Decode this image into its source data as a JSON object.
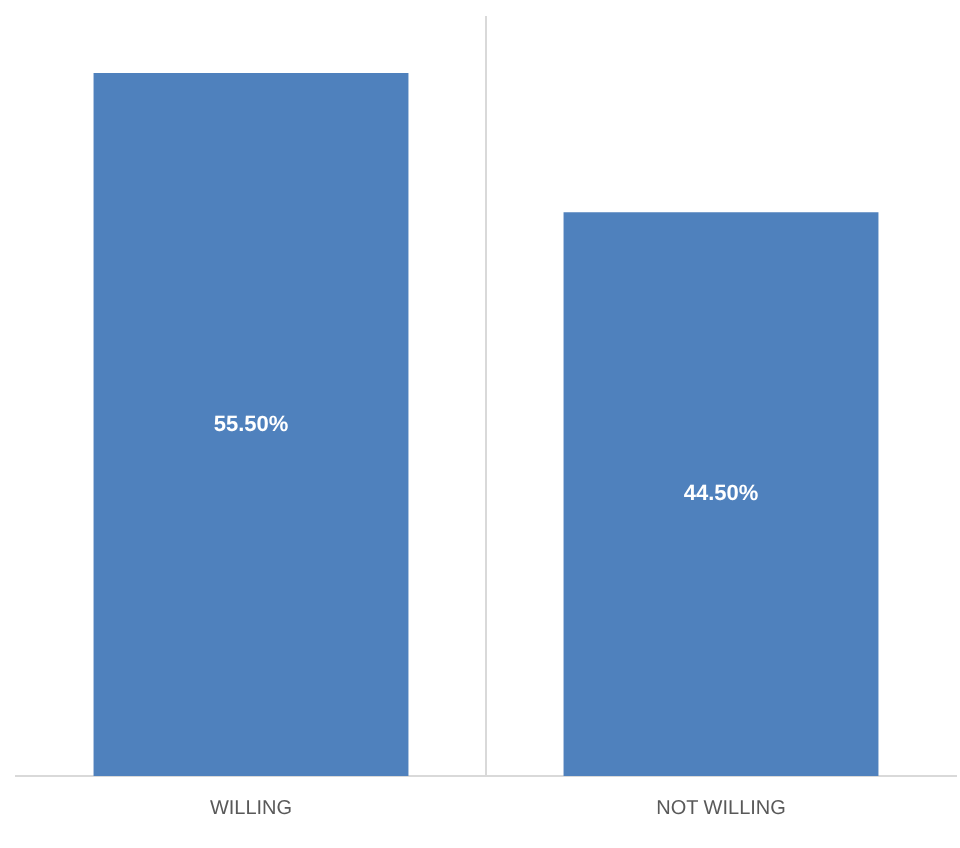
{
  "chart_data": {
    "type": "bar",
    "categories": [
      "WILLING",
      "NOT WILLING"
    ],
    "values": [
      55.5,
      44.5
    ],
    "value_labels": [
      "55.50%",
      "44.50%"
    ],
    "color": "#4f81bd",
    "grid": "x",
    "legend": false
  }
}
